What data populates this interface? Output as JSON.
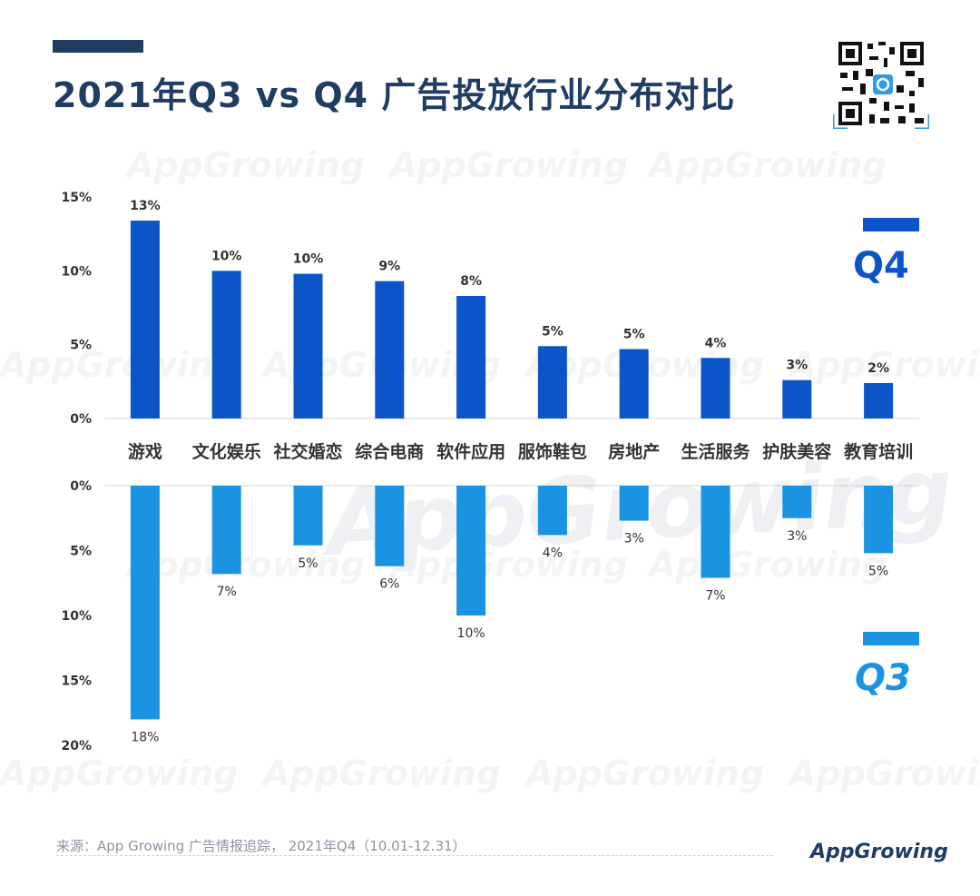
{
  "title": "2021年Q3 vs Q4 广告投放行业分布对比",
  "watermark_text": "AppGrowing",
  "legend": {
    "q4": "Q4",
    "q3": "Q3"
  },
  "footer": {
    "source": "来源：App Growing 广告情报追踪， 2021年Q4（10.01-12.31）",
    "logo": "AppGrowing"
  },
  "colors": {
    "q4": "#0b55c8",
    "q3": "#1a93e2",
    "title": "#1f3d63"
  },
  "chart_data": [
    {
      "type": "bar",
      "categories": [
        "游戏",
        "文化娱乐",
        "社交婚恋",
        "综合电商",
        "软件应用",
        "服饰鞋包",
        "房地产",
        "生活服务",
        "护肤美容",
        "教育培训"
      ],
      "series": [
        {
          "name": "Q4",
          "values": [
            13.4,
            10.0,
            9.8,
            9.3,
            8.3,
            4.9,
            4.7,
            4.1,
            2.6,
            2.4
          ],
          "labels": [
            "13%",
            "10%",
            "10%",
            "9%",
            "8%",
            "5%",
            "5%",
            "4%",
            "3%",
            "2%"
          ]
        }
      ],
      "ylim": [
        0,
        15
      ],
      "yticks": [
        "0%",
        "5%",
        "10%",
        "15%"
      ]
    },
    {
      "type": "bar",
      "categories": [
        "游戏",
        "文化娱乐",
        "社交婚恋",
        "综合电商",
        "软件应用",
        "服饰鞋包",
        "房地产",
        "生活服务",
        "护肤美容",
        "教育培训"
      ],
      "series": [
        {
          "name": "Q3",
          "values": [
            18.0,
            6.8,
            4.6,
            6.2,
            10.0,
            3.8,
            2.7,
            7.1,
            2.5,
            5.2
          ],
          "labels": [
            "18%",
            "7%",
            "5%",
            "6%",
            "10%",
            "4%",
            "3%",
            "7%",
            "3%",
            "5%"
          ]
        }
      ],
      "ylim": [
        0,
        20
      ],
      "yticks": [
        "0%",
        "5%",
        "10%",
        "15%",
        "20%"
      ]
    }
  ]
}
